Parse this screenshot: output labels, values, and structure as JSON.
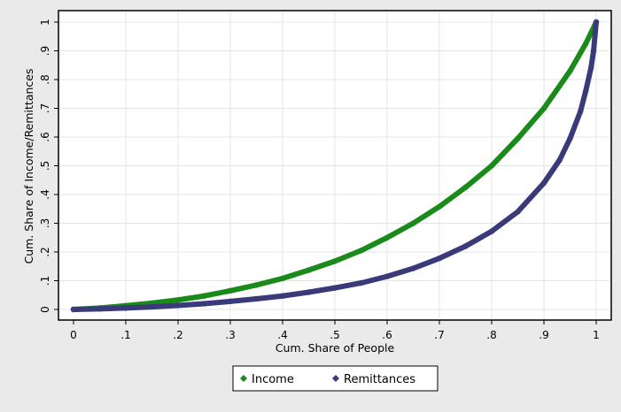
{
  "chart_data": {
    "type": "line",
    "title": "",
    "xlabel": "Cum. Share of People",
    "ylabel": "Cum. Share of Income/Remittances",
    "xlim": [
      0,
      1
    ],
    "ylim": [
      0,
      1
    ],
    "grid": true,
    "legend_position": "bottom",
    "x_ticks": [
      0,
      0.1,
      0.2,
      0.3,
      0.4,
      0.5,
      0.6,
      0.7,
      0.8,
      0.9,
      1
    ],
    "x_tick_labels": [
      "0",
      ".1",
      ".2",
      ".3",
      ".4",
      ".5",
      ".6",
      ".7",
      ".8",
      ".9",
      "1"
    ],
    "y_ticks": [
      0,
      0.1,
      0.2,
      0.3,
      0.4,
      0.5,
      0.6,
      0.7,
      0.8,
      0.9,
      1
    ],
    "y_tick_labels": [
      "0",
      ".1",
      ".2",
      ".3",
      ".4",
      ".5",
      ".6",
      ".7",
      ".8",
      ".9",
      "1"
    ],
    "series": [
      {
        "name": "Income",
        "color": "#1a8a1a",
        "x": [
          0,
          0.05,
          0.1,
          0.15,
          0.2,
          0.25,
          0.3,
          0.35,
          0.4,
          0.45,
          0.5,
          0.55,
          0.6,
          0.65,
          0.7,
          0.75,
          0.8,
          0.85,
          0.9,
          0.95,
          0.98,
          1
        ],
        "y": [
          0,
          0.005,
          0.013,
          0.022,
          0.033,
          0.047,
          0.065,
          0.085,
          0.108,
          0.137,
          0.168,
          0.205,
          0.25,
          0.3,
          0.358,
          0.425,
          0.5,
          0.595,
          0.7,
          0.83,
          0.925,
          1
        ]
      },
      {
        "name": "Remittances",
        "color": "#3a3a7a",
        "x": [
          0,
          0.05,
          0.1,
          0.15,
          0.2,
          0.25,
          0.3,
          0.35,
          0.4,
          0.45,
          0.5,
          0.55,
          0.6,
          0.65,
          0.7,
          0.75,
          0.8,
          0.85,
          0.9,
          0.93,
          0.95,
          0.97,
          0.98,
          0.99,
          0.995,
          1
        ],
        "y": [
          0,
          0.002,
          0.005,
          0.009,
          0.014,
          0.02,
          0.028,
          0.037,
          0.047,
          0.06,
          0.075,
          0.092,
          0.115,
          0.143,
          0.178,
          0.22,
          0.272,
          0.34,
          0.44,
          0.52,
          0.595,
          0.69,
          0.76,
          0.84,
          0.9,
          1
        ]
      }
    ]
  }
}
